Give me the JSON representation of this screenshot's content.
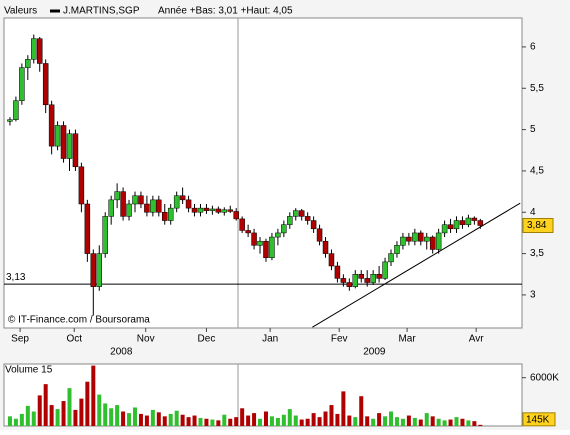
{
  "chart_data": {
    "type": "candlestick",
    "header": "Valeurs",
    "series_name": "J.MARTINS,SGP",
    "range_note": "Année +Bas: 3,01 +Haut: 4,05",
    "source": "© IT-Finance.com / Boursorama",
    "up_color": "#2fbf2f",
    "down_color": "#b00000",
    "ylim": [
      2.6,
      6.35
    ],
    "yticks": [
      {
        "value": 6,
        "label": "6"
      },
      {
        "value": 5.5,
        "label": "5,5"
      },
      {
        "value": 5,
        "label": "5"
      },
      {
        "value": 4.5,
        "label": "4,5"
      },
      {
        "value": 4,
        "label": "4"
      },
      {
        "value": 3.5,
        "label": "3,5"
      },
      {
        "value": 3,
        "label": "3"
      }
    ],
    "xlim": [
      -1,
      86
    ],
    "xticks": [
      {
        "value": 1.7,
        "label": "Sep"
      },
      {
        "value": 10.8,
        "label": "Oct"
      },
      {
        "value": 22.8,
        "label": "Nov"
      },
      {
        "value": 33,
        "label": "Dec"
      },
      {
        "value": 43.7,
        "label": "Jan"
      },
      {
        "value": 55.3,
        "label": "Fev"
      },
      {
        "value": 66.7,
        "label": "Mar"
      },
      {
        "value": 78.3,
        "label": "Avr"
      }
    ],
    "years": [
      {
        "value": 18.7,
        "label": "2008"
      },
      {
        "value": 61.2,
        "label": "2009"
      }
    ],
    "year_line": 38.3,
    "support": {
      "value": 3.13,
      "label": "3,13"
    },
    "last": {
      "value": 3.84,
      "label": "3,84"
    },
    "trendline": {
      "x": [
        50.8,
        85.7
      ],
      "y": [
        2.61,
        4.11
      ]
    },
    "candles": [
      [
        5.1,
        5.15,
        5.05,
        5.12
      ],
      [
        5.12,
        5.4,
        5.1,
        5.35
      ],
      [
        5.35,
        5.8,
        5.3,
        5.75
      ],
      [
        5.75,
        5.9,
        5.6,
        5.85
      ],
      [
        5.85,
        6.15,
        5.8,
        6.1
      ],
      [
        6.1,
        6.12,
        5.7,
        5.8
      ],
      [
        5.8,
        5.85,
        5.2,
        5.3
      ],
      [
        5.3,
        5.35,
        4.7,
        4.8
      ],
      [
        4.8,
        5.1,
        4.75,
        5.05
      ],
      [
        5.05,
        5.1,
        4.6,
        4.65
      ],
      [
        4.65,
        5.0,
        4.5,
        4.95
      ],
      [
        4.95,
        5.0,
        4.5,
        4.55
      ],
      [
        4.55,
        4.6,
        4.0,
        4.1
      ],
      [
        4.1,
        4.15,
        3.4,
        3.5
      ],
      [
        3.5,
        3.55,
        2.75,
        3.1
      ],
      [
        3.1,
        3.6,
        3.05,
        3.5
      ],
      [
        3.5,
        4.0,
        3.45,
        3.95
      ],
      [
        3.95,
        4.2,
        3.85,
        4.15
      ],
      [
        4.15,
        4.35,
        4.05,
        4.25
      ],
      [
        4.25,
        4.3,
        3.9,
        3.95
      ],
      [
        3.95,
        4.15,
        3.9,
        4.1
      ],
      [
        4.1,
        4.25,
        4.0,
        4.2
      ],
      [
        4.2,
        4.25,
        4.05,
        4.1
      ],
      [
        4.1,
        4.2,
        3.95,
        4.0
      ],
      [
        4.0,
        4.2,
        3.95,
        4.15
      ],
      [
        4.15,
        4.2,
        3.95,
        4.0
      ],
      [
        4.0,
        4.1,
        3.85,
        3.9
      ],
      [
        3.9,
        4.1,
        3.85,
        4.05
      ],
      [
        4.05,
        4.25,
        4.0,
        4.2
      ],
      [
        4.2,
        4.3,
        4.1,
        4.15
      ],
      [
        4.15,
        4.2,
        4.0,
        4.05
      ],
      [
        4.05,
        4.1,
        3.95,
        4.0
      ],
      [
        4.0,
        4.1,
        3.95,
        4.05
      ],
      [
        4.05,
        4.1,
        3.98,
        4.02
      ],
      [
        4.02,
        4.08,
        3.97,
        4.04
      ],
      [
        4.04,
        4.07,
        3.98,
        4.0
      ],
      [
        4.0,
        4.06,
        3.96,
        4.03
      ],
      [
        4.03,
        4.08,
        3.99,
        4.01
      ],
      [
        4.01,
        4.05,
        3.9,
        3.92
      ],
      [
        3.92,
        3.95,
        3.75,
        3.78
      ],
      [
        3.78,
        3.85,
        3.7,
        3.75
      ],
      [
        3.75,
        3.8,
        3.55,
        3.6
      ],
      [
        3.6,
        3.7,
        3.5,
        3.65
      ],
      [
        3.65,
        3.68,
        3.4,
        3.45
      ],
      [
        3.45,
        3.75,
        3.42,
        3.7
      ],
      [
        3.7,
        3.8,
        3.6,
        3.75
      ],
      [
        3.75,
        3.9,
        3.7,
        3.85
      ],
      [
        3.85,
        4.0,
        3.8,
        3.95
      ],
      [
        3.95,
        4.05,
        3.9,
        4.02
      ],
      [
        4.02,
        4.04,
        3.9,
        3.95
      ],
      [
        3.95,
        4.0,
        3.85,
        3.9
      ],
      [
        3.9,
        3.95,
        3.75,
        3.8
      ],
      [
        3.8,
        3.85,
        3.6,
        3.65
      ],
      [
        3.65,
        3.7,
        3.45,
        3.5
      ],
      [
        3.5,
        3.55,
        3.3,
        3.35
      ],
      [
        3.35,
        3.4,
        3.15,
        3.2
      ],
      [
        3.2,
        3.25,
        3.1,
        3.15
      ],
      [
        3.15,
        3.2,
        3.05,
        3.1
      ],
      [
        3.1,
        3.3,
        3.08,
        3.25
      ],
      [
        3.25,
        3.3,
        3.15,
        3.2
      ],
      [
        3.2,
        3.3,
        3.1,
        3.15
      ],
      [
        3.15,
        3.3,
        3.12,
        3.25
      ],
      [
        3.25,
        3.35,
        3.15,
        3.2
      ],
      [
        3.2,
        3.45,
        3.18,
        3.4
      ],
      [
        3.4,
        3.55,
        3.35,
        3.5
      ],
      [
        3.5,
        3.65,
        3.45,
        3.6
      ],
      [
        3.6,
        3.75,
        3.55,
        3.7
      ],
      [
        3.7,
        3.75,
        3.6,
        3.65
      ],
      [
        3.65,
        3.8,
        3.6,
        3.75
      ],
      [
        3.75,
        3.78,
        3.6,
        3.65
      ],
      [
        3.65,
        3.75,
        3.55,
        3.7
      ],
      [
        3.7,
        3.72,
        3.5,
        3.55
      ],
      [
        3.55,
        3.8,
        3.5,
        3.75
      ],
      [
        3.75,
        3.9,
        3.7,
        3.85
      ],
      [
        3.85,
        3.92,
        3.75,
        3.8
      ],
      [
        3.8,
        3.95,
        3.75,
        3.9
      ],
      [
        3.9,
        3.95,
        3.8,
        3.85
      ],
      [
        3.85,
        3.97,
        3.82,
        3.93
      ],
      [
        3.93,
        3.95,
        3.85,
        3.9
      ],
      [
        3.9,
        3.92,
        3.8,
        3.84
      ]
    ],
    "volume_title": "Volume 15",
    "volume_ylim": [
      0,
      7700
    ],
    "volume_ticks": [
      {
        "value": 6000,
        "label": "6000K"
      }
    ],
    "last_volume": {
      "value": 145,
      "label": "145K"
    },
    "volumes": [
      1200,
      900,
      1500,
      2500,
      1800,
      3800,
      5200,
      2600,
      2100,
      3100,
      4700,
      2000,
      3400,
      5500,
      7500,
      3900,
      2800,
      2200,
      2600,
      1800,
      1600,
      2300,
      1500,
      1300,
      2000,
      1700,
      1200,
      1500,
      1900,
      1400,
      1100,
      1300,
      1000,
      900,
      800,
      700,
      1400,
      900,
      1100,
      2200,
      1300,
      1600,
      900,
      1800,
      1200,
      1000,
      1400,
      2100,
      1300,
      800,
      900,
      1600,
      1100,
      1800,
      2600,
      1500,
      4300,
      1300,
      1100,
      3700,
      1200,
      900,
      1600,
      1200,
      1800,
      1100,
      900,
      1300,
      1000,
      800,
      1600,
      1200,
      900,
      700,
      800,
      1100,
      900,
      700,
      600,
      145
    ]
  }
}
